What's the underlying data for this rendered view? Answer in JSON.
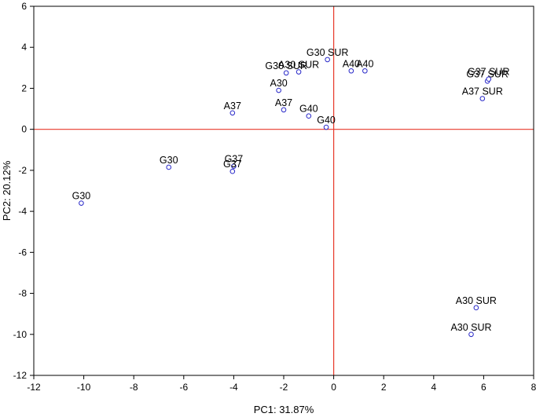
{
  "chart_data": {
    "type": "scatter",
    "xlabel": "PC1: 31.87%",
    "ylabel": "PC2: 20.12%",
    "xlim": [
      -12,
      8
    ],
    "ylim": [
      -12,
      6
    ],
    "xticks": [
      -12,
      -10,
      -8,
      -6,
      -4,
      -2,
      0,
      2,
      4,
      6,
      8
    ],
    "yticks": [
      -12,
      -10,
      -8,
      -6,
      -4,
      -2,
      0,
      2,
      4,
      6
    ],
    "grid": false,
    "reference_lines": {
      "x": 0,
      "y": 0,
      "color": "#e8392b"
    },
    "marker_color": "#2828c8",
    "points": [
      {
        "label": "G30",
        "x": -10.1,
        "y": -3.6
      },
      {
        "label": "G30",
        "x": -6.6,
        "y": -1.85
      },
      {
        "label": "G37",
        "x": -4.0,
        "y": -1.8
      },
      {
        "label": "G37",
        "x": -4.05,
        "y": -2.05
      },
      {
        "label": "A37",
        "x": -4.05,
        "y": 0.8
      },
      {
        "label": "A37",
        "x": -2.0,
        "y": 0.95
      },
      {
        "label": "A30",
        "x": -2.2,
        "y": 1.9
      },
      {
        "label": "G30 SUR",
        "x": -1.9,
        "y": 2.75
      },
      {
        "label": "A30 SUR",
        "x": -1.4,
        "y": 2.8
      },
      {
        "label": "G30 SUR",
        "x": -0.25,
        "y": 3.4
      },
      {
        "label": "G40",
        "x": -1.0,
        "y": 0.65
      },
      {
        "label": "G40",
        "x": -0.3,
        "y": 0.1
      },
      {
        "label": "A40",
        "x": 0.7,
        "y": 2.85
      },
      {
        "label": "A40",
        "x": 1.25,
        "y": 2.85
      },
      {
        "label": "G37 SUR",
        "x": 6.15,
        "y": 2.35
      },
      {
        "label": "G37 SUR",
        "x": 6.2,
        "y": 2.45
      },
      {
        "label": "A37 SUR",
        "x": 5.95,
        "y": 1.5
      },
      {
        "label": "A30 SUR",
        "x": 5.7,
        "y": -8.7
      },
      {
        "label": "A30 SUR",
        "x": 5.5,
        "y": -10.0
      }
    ]
  }
}
